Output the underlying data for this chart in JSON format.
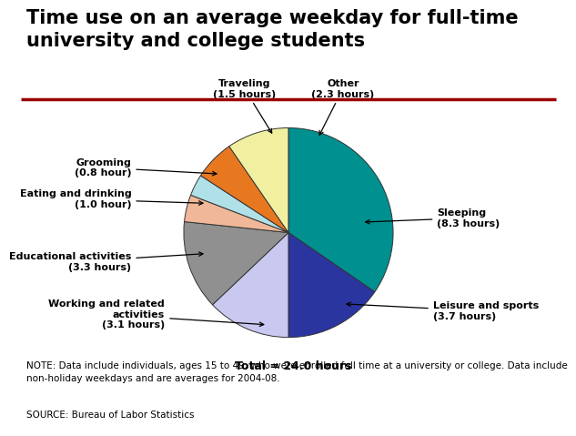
{
  "title": "Time use on an average weekday for full-time\nuniversity and college students",
  "slices": [
    {
      "label": "Sleeping\n(8.3 hours)",
      "value": 8.3,
      "color": "#009090"
    },
    {
      "label": "Leisure and sports\n(3.7 hours)",
      "value": 3.7,
      "color": "#2b35a0"
    },
    {
      "label": "Working and related\nactivities\n(3.1 hours)",
      "value": 3.1,
      "color": "#c8c8f0"
    },
    {
      "label": "Educational activities\n(3.3 hours)",
      "value": 3.3,
      "color": "#909090"
    },
    {
      "label": "Eating and drinking\n(1.0 hour)",
      "value": 1.0,
      "color": "#f0b898"
    },
    {
      "label": "Grooming\n(0.8 hour)",
      "value": 0.8,
      "color": "#b0e0e8"
    },
    {
      "label": "Traveling\n(1.5 hours)",
      "value": 1.5,
      "color": "#e87820"
    },
    {
      "label": "Other\n(2.3 hours)",
      "value": 2.3,
      "color": "#f0f0a0"
    }
  ],
  "total_label": "Total = 24.0 hours",
  "note": "NOTE: Data include individuals, ages 15 to 49, who were enrolled full time at a university or college. Data include\nnon-holiday weekdays and are averages for 2004-08.",
  "source": "SOURCE: Bureau of Labor Statistics",
  "separator_color": "#990000",
  "background_color": "#ffffff",
  "title_fontsize": 15,
  "label_fontsize": 8,
  "total_fontsize": 9,
  "note_fontsize": 7.5
}
